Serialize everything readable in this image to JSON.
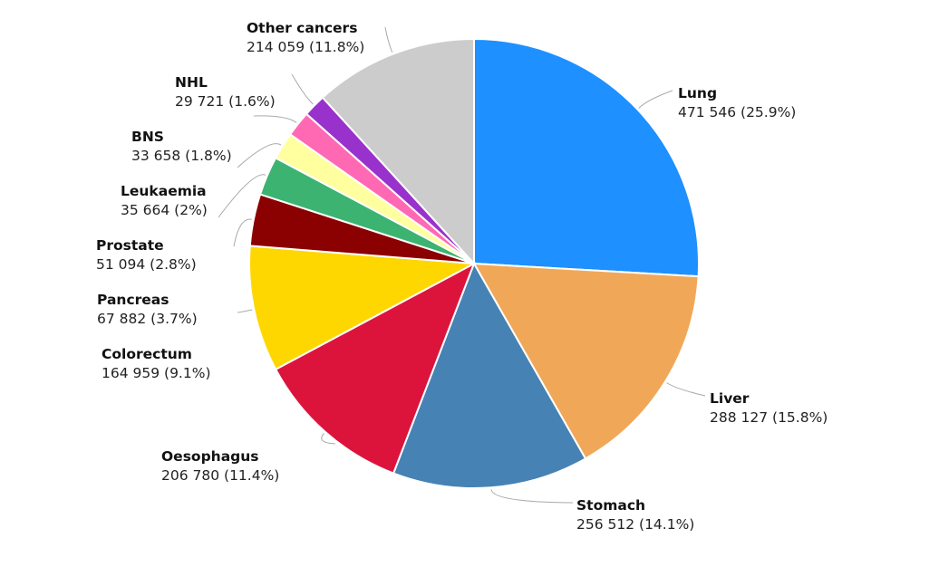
{
  "chart_data": {
    "type": "pie",
    "start": "top, clockwise",
    "slices": [
      {
        "name": "Lung",
        "value": 471546,
        "value_label": "471 546",
        "pct_label": "(25.9%)",
        "color": "#1e90ff"
      },
      {
        "name": "Liver",
        "value": 288127,
        "value_label": "288 127",
        "pct_label": "(15.8%)",
        "color": "#f0a858"
      },
      {
        "name": "Stomach",
        "value": 256512,
        "value_label": "256 512",
        "pct_label": "(14.1%)",
        "color": "#4682b4"
      },
      {
        "name": "Oesophagus",
        "value": 206780,
        "value_label": "206 780",
        "pct_label": "(11.4%)",
        "color": "#dc143c"
      },
      {
        "name": "Colorectum",
        "value": 164959,
        "value_label": "164 959",
        "pct_label": "(9.1%)",
        "color": "#ffd700"
      },
      {
        "name": "Pancreas",
        "value": 67882,
        "value_label": "67 882",
        "pct_label": "(3.7%)",
        "color": "#8b0000"
      },
      {
        "name": "Prostate",
        "value": 51094,
        "value_label": "51 094",
        "pct_label": "(2.8%)",
        "color": "#3cb371"
      },
      {
        "name": "Leukaemia",
        "value": 35664,
        "value_label": "35 664",
        "pct_label": "(2%)",
        "color": "#ffffa0"
      },
      {
        "name": "BNS",
        "value": 33658,
        "value_label": "33 658",
        "pct_label": "(1.8%)",
        "color": "#ff69b4"
      },
      {
        "name": "NHL",
        "value": 29721,
        "value_label": "29 721",
        "pct_label": "(1.6%)",
        "color": "#9932cc"
      },
      {
        "name": "Other cancers",
        "value": 214059,
        "value_label": "214 059",
        "pct_label": "(11.8%)",
        "color": "#cccccc"
      }
    ]
  }
}
